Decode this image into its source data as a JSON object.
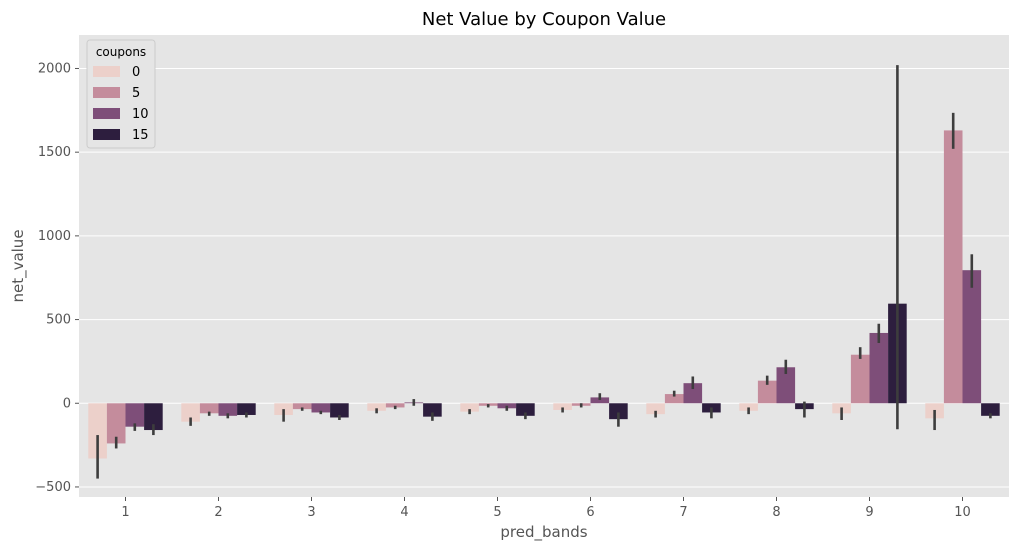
{
  "chart_data": {
    "type": "bar",
    "title": "Net Value by Coupon Value",
    "xlabel": "pred_bands",
    "ylabel": "net_value",
    "categories": [
      "1",
      "2",
      "3",
      "4",
      "5",
      "6",
      "7",
      "8",
      "9",
      "10"
    ],
    "ylim": [
      -560,
      2200
    ],
    "yticks": [
      -500,
      0,
      500,
      1000,
      1500,
      2000
    ],
    "ytick_labels": [
      "−500",
      "0",
      "500",
      "1000",
      "1500",
      "2000"
    ],
    "grid": true,
    "legend": {
      "title": "coupons",
      "placement": "top-left"
    },
    "series": [
      {
        "name": "0",
        "color": "#ecd0ca",
        "values": [
          -330,
          -110,
          -70,
          -45,
          -50,
          -40,
          -65,
          -45,
          -60,
          -90
        ],
        "err_low": [
          -450,
          -135,
          -110,
          -60,
          -65,
          -55,
          -85,
          -65,
          -100,
          -160
        ],
        "err_high": [
          -190,
          -85,
          -35,
          -30,
          -35,
          -25,
          -45,
          -25,
          -25,
          -40
        ]
      },
      {
        "name": "5",
        "color": "#c48c9c",
        "values": [
          -240,
          -60,
          -35,
          -25,
          -15,
          -15,
          55,
          135,
          290,
          1630
        ],
        "err_low": [
          -270,
          -75,
          -45,
          -35,
          -25,
          -25,
          40,
          110,
          265,
          1520
        ],
        "err_high": [
          -200,
          -50,
          -25,
          -15,
          -5,
          0,
          75,
          165,
          335,
          1735
        ]
      },
      {
        "name": "10",
        "color": "#7e4e79",
        "values": [
          -140,
          -75,
          -55,
          5,
          -30,
          35,
          120,
          215,
          420,
          795
        ],
        "err_low": [
          -165,
          -90,
          -65,
          -15,
          -45,
          20,
          85,
          175,
          360,
          690
        ],
        "err_high": [
          -120,
          -60,
          -45,
          25,
          -15,
          60,
          160,
          260,
          475,
          890
        ]
      },
      {
        "name": "15",
        "color": "#2d1e3e",
        "values": [
          -160,
          -70,
          -85,
          -80,
          -75,
          -95,
          -55,
          -35,
          595,
          -75
        ],
        "err_low": [
          -190,
          -85,
          -100,
          -105,
          -95,
          -140,
          -90,
          -85,
          -155,
          -90
        ],
        "err_high": [
          -125,
          -55,
          -70,
          -55,
          -55,
          -55,
          -25,
          10,
          2020,
          -60
        ]
      }
    ]
  }
}
